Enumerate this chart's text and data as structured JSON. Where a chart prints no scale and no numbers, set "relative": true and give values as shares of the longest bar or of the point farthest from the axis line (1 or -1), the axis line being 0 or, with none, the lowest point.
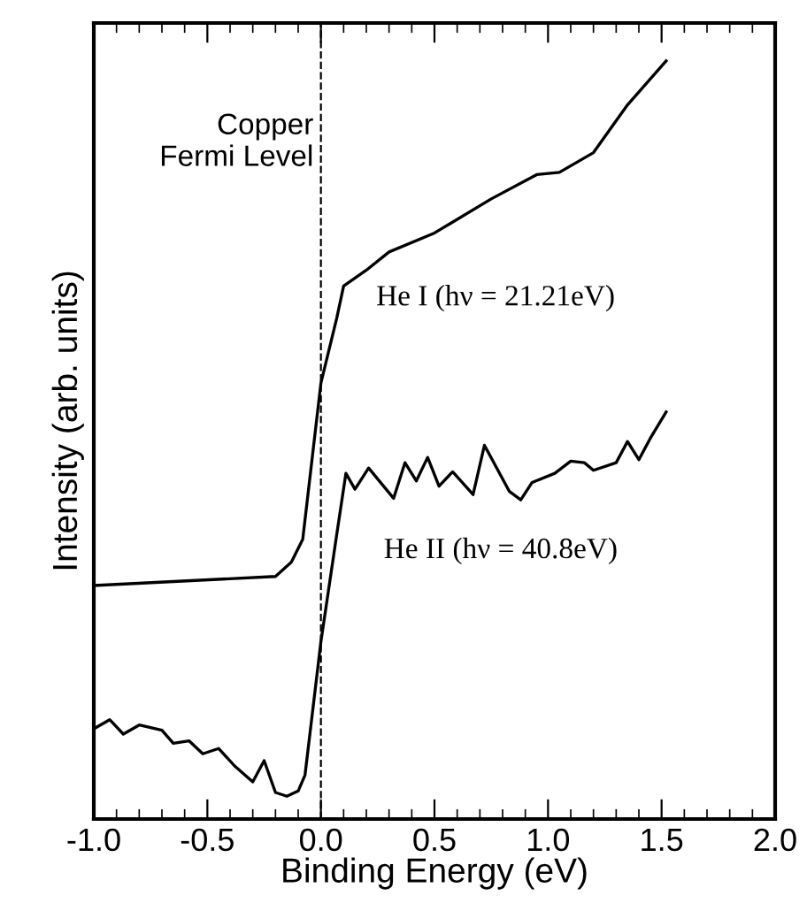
{
  "chart_data": {
    "type": "line",
    "relative": true,
    "xlabel": "Binding Energy (eV)",
    "ylabel": "Intensity (arb. units)",
    "xlim": [
      -1.0,
      2.0
    ],
    "xticks": [
      {
        "value": -1.0,
        "label": "-1.0"
      },
      {
        "value": -0.5,
        "label": "-0.5"
      },
      {
        "value": 0.0,
        "label": "0.0"
      },
      {
        "value": 0.5,
        "label": "0.5"
      },
      {
        "value": 1.0,
        "label": "1.0"
      },
      {
        "value": 1.5,
        "label": "1.5"
      },
      {
        "value": 2.0,
        "label": "2.0"
      }
    ],
    "tick_labels": "x",
    "grid": false,
    "marker": "none",
    "line_style": "solid",
    "ref_lines": [
      {
        "axis": "x",
        "value": 0.0,
        "label": "Copper\nFermi Level",
        "line_style": "dashed",
        "color": "#000000"
      }
    ],
    "series": [
      {
        "name": "He I (hν = 21.21eV)",
        "color": "#000000",
        "x": [
          -1.0,
          -0.2,
          -0.13,
          -0.08,
          0.0,
          0.07,
          0.1,
          0.2,
          0.3,
          0.5,
          0.75,
          0.95,
          1.05,
          1.2,
          1.35,
          1.52
        ],
        "values": [
          0.308,
          0.32,
          0.339,
          0.369,
          0.575,
          0.661,
          0.703,
          0.724,
          0.748,
          0.773,
          0.818,
          0.85,
          0.853,
          0.879,
          0.942,
          1.0
        ]
      },
      {
        "name": "He II (hν = 40.8eV)",
        "color": "#000000",
        "x": [
          -1.0,
          -0.93,
          -0.87,
          -0.8,
          -0.7,
          -0.65,
          -0.58,
          -0.52,
          -0.45,
          -0.38,
          -0.3,
          -0.25,
          -0.2,
          -0.15,
          -0.1,
          -0.07,
          0.0,
          0.07,
          0.11,
          0.15,
          0.21,
          0.32,
          0.37,
          0.42,
          0.47,
          0.52,
          0.58,
          0.67,
          0.72,
          0.83,
          0.88,
          0.93,
          1.03,
          1.1,
          1.16,
          1.2,
          1.3,
          1.35,
          1.4,
          1.45,
          1.52
        ],
        "values": [
          0.119,
          0.131,
          0.112,
          0.124,
          0.117,
          0.1,
          0.103,
          0.086,
          0.093,
          0.07,
          0.049,
          0.077,
          0.035,
          0.03,
          0.037,
          0.058,
          0.234,
          0.376,
          0.456,
          0.435,
          0.463,
          0.423,
          0.47,
          0.446,
          0.477,
          0.439,
          0.458,
          0.428,
          0.493,
          0.432,
          0.421,
          0.444,
          0.456,
          0.472,
          0.47,
          0.46,
          0.47,
          0.498,
          0.474,
          0.502,
          0.537
        ]
      }
    ]
  }
}
